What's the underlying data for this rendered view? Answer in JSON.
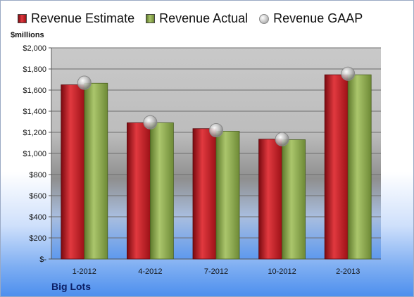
{
  "chart_data": {
    "type": "bar",
    "categories": [
      "1-2012",
      "4-2012",
      "7-2012",
      "10-2012",
      "2-2013"
    ],
    "series": [
      {
        "name": "Revenue Estimate",
        "values": [
          1650,
          1290,
          1235,
          1135,
          1745
        ],
        "color": "#c8181f"
      },
      {
        "name": "Revenue Actual",
        "values": [
          1665,
          1290,
          1210,
          1130,
          1745
        ],
        "color": "#8cab4d"
      },
      {
        "name": "Revenue GAAP",
        "values": [
          1670,
          1295,
          1220,
          1135,
          1755
        ],
        "color": "#bdbdbd",
        "marker": "circle"
      }
    ],
    "ylabel": "$millions",
    "ylim": [
      0,
      2000
    ],
    "ytick_labels": [
      "$-",
      "$200",
      "$400",
      "$600",
      "$800",
      "$1,000",
      "$1,200",
      "$1,400",
      "$1,600",
      "$1,800",
      "$2,000"
    ],
    "grid": true,
    "legend_position": "top"
  },
  "company": "Big Lots"
}
